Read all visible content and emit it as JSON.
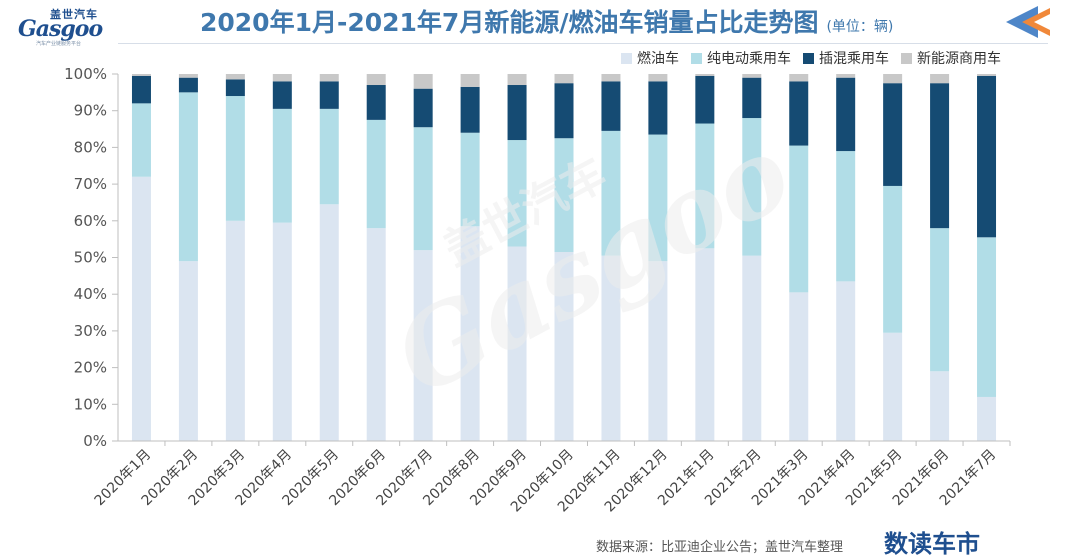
{
  "header": {
    "logo_cn": "盖世汽车",
    "logo_en": "Gasgoo",
    "logo_tagline": "汽车产业链服务平台",
    "title": "2020年1月-2021年7月新能源/燃油车销量占比走势图",
    "unit": "(单位：辆)"
  },
  "watermark": {
    "cn": "盖世汽车",
    "en": "Gasgoo"
  },
  "footer": {
    "source": "数据来源：比亚迪企业公告；盖世汽车整理",
    "brand": "数读车市"
  },
  "colors": {
    "fuel": "#dbe5f1",
    "bev": "#b1dde7",
    "phev": "#154b73",
    "commercial": "#c8c8c8",
    "title": "#3f78ad",
    "arrow_blue": "#4e86c8",
    "arrow_orange": "#f0883a"
  },
  "chart_data": {
    "type": "bar",
    "stacked": true,
    "title": "2020年1月-2021年7月新能源/燃油车销量占比走势图",
    "unit": "(单位：辆)",
    "xlabel": "",
    "ylabel": "",
    "ylim": [
      0,
      100
    ],
    "yticks": [
      "0%",
      "10%",
      "20%",
      "30%",
      "40%",
      "50%",
      "60%",
      "70%",
      "80%",
      "90%",
      "100%"
    ],
    "legend_position": "top-right",
    "grid": false,
    "categories": [
      "2020年1月",
      "2020年2月",
      "2020年3月",
      "2020年4月",
      "2020年5月",
      "2020年6月",
      "2020年7月",
      "2020年8月",
      "2020年9月",
      "2020年10月",
      "2020年11月",
      "2020年12月",
      "2021年1月",
      "2021年2月",
      "2021年3月",
      "2021年4月",
      "2021年5月",
      "2021年6月",
      "2021年7月"
    ],
    "series": [
      {
        "name": "燃油车",
        "key": "fuel",
        "values": [
          72,
          49,
          60,
          59.5,
          64.5,
          58,
          52,
          58.5,
          53,
          51.5,
          50.5,
          49,
          52.5,
          50.5,
          40.5,
          43.5,
          29.5,
          19,
          12
        ]
      },
      {
        "name": "纯电动乘用车",
        "key": "bev",
        "values": [
          20,
          46,
          34,
          31,
          26,
          29.5,
          33.5,
          25.5,
          29,
          31,
          34,
          34.5,
          34,
          37.5,
          40,
          35.5,
          40,
          39,
          43.5
        ]
      },
      {
        "name": "插混乘用车",
        "key": "phev",
        "values": [
          7.5,
          4,
          4.5,
          7.5,
          7.5,
          9.5,
          10.5,
          12.5,
          15,
          15,
          13.5,
          14.5,
          13,
          11,
          17.5,
          20,
          28,
          39.5,
          44
        ]
      },
      {
        "name": "新能源商用车",
        "key": "commercial",
        "values": [
          0.5,
          1,
          1.5,
          2,
          2,
          3,
          4,
          3.5,
          3,
          2.5,
          2,
          2,
          0.5,
          1,
          2,
          1,
          2.5,
          2.5,
          0.5
        ]
      }
    ]
  }
}
